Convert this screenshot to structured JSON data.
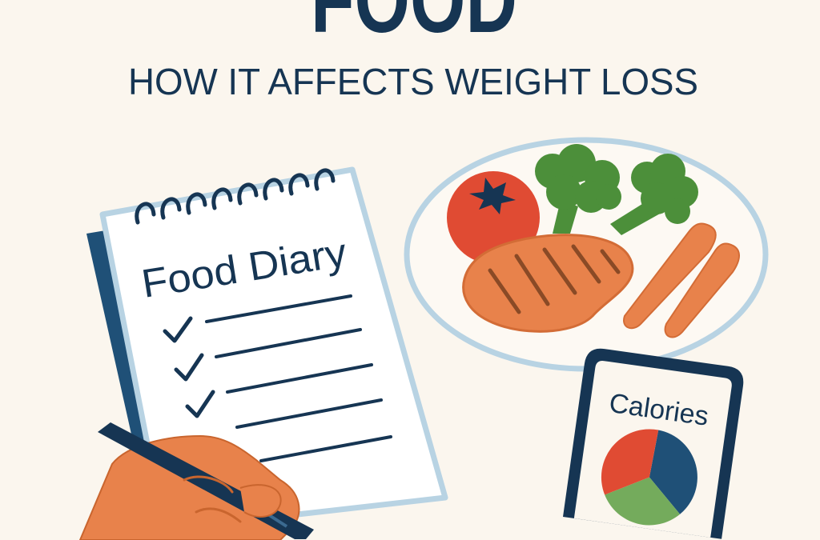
{
  "header": {
    "title": "FOOD",
    "subtitle": "HOW IT AFFECTS WEIGHT LOSS"
  },
  "notebook": {
    "title": "Food Diary",
    "checked_items": 3,
    "lines": 5
  },
  "plate": {
    "items": [
      "tomato-icon",
      "broccoli-icon",
      "broccoli-icon",
      "steak-icon",
      "carrot-icon",
      "carrot-icon"
    ]
  },
  "phone": {
    "label": "Calories",
    "pie": [
      {
        "color": "#1f5077",
        "share": 0.36
      },
      {
        "color": "#74ab5c",
        "share": 0.3
      },
      {
        "color": "#e04b33",
        "share": 0.34
      }
    ]
  },
  "colors": {
    "background": "#fbf6ee",
    "navy": "#163553",
    "tomato": "#e04b33",
    "green": "#4c8f3a",
    "orange": "#e8824b",
    "plate_rim": "#b8d3e3"
  }
}
